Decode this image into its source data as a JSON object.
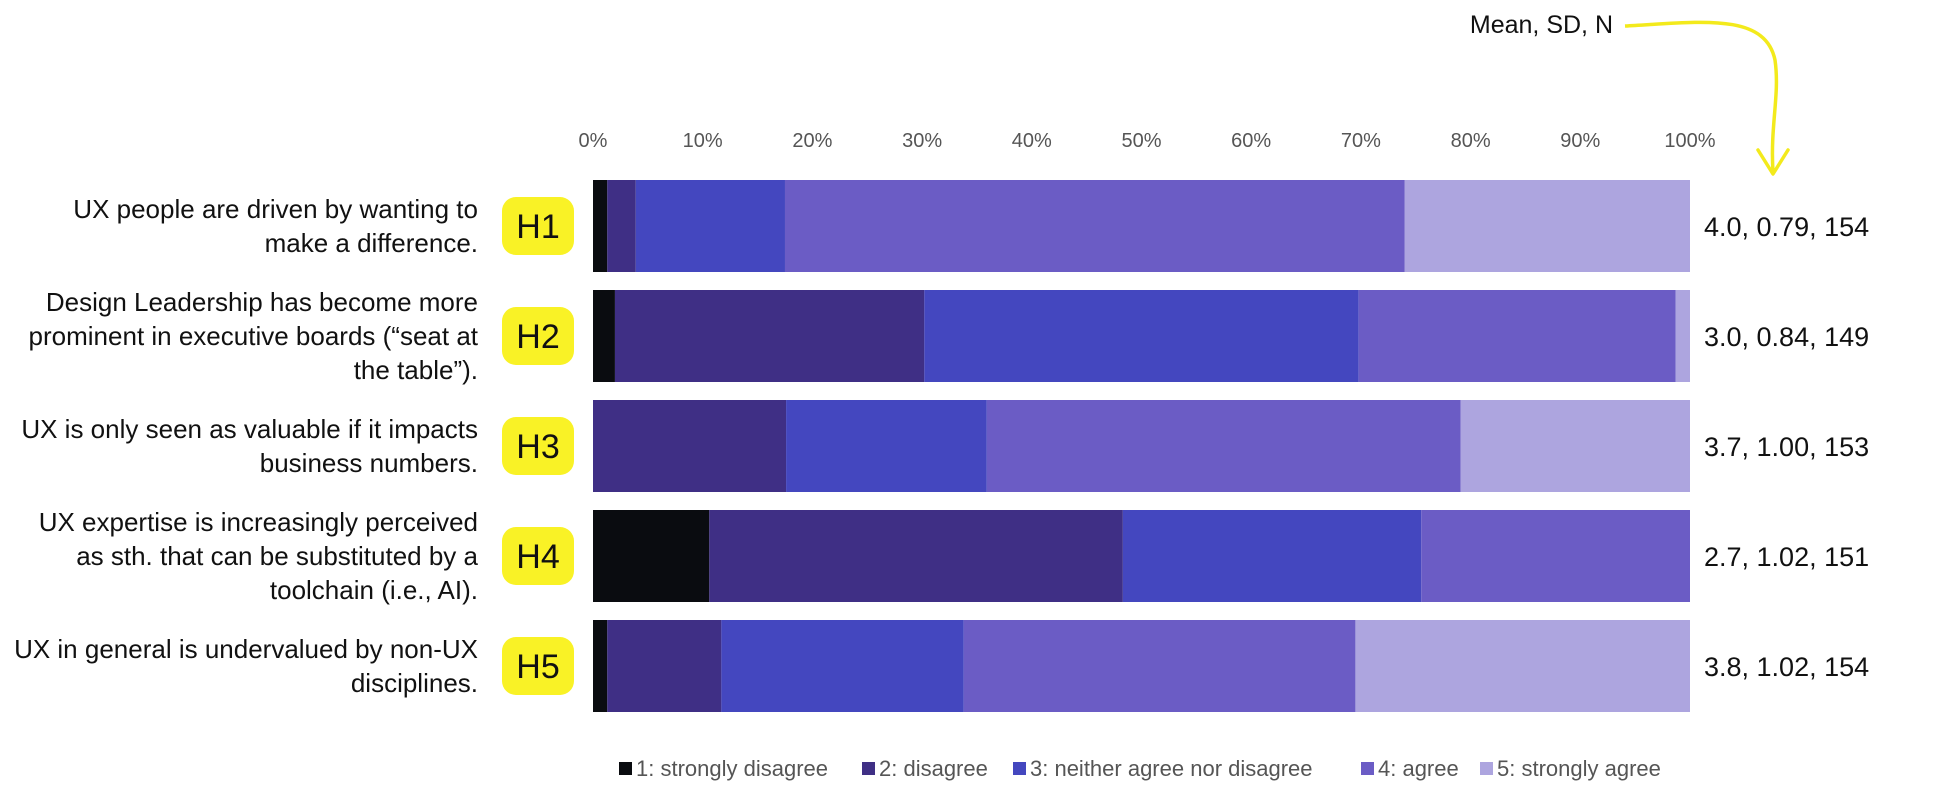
{
  "chart_data": {
    "type": "bar",
    "stacked": true,
    "orientation": "horizontal",
    "xlim": [
      0,
      100
    ],
    "x_ticks": [
      "0%",
      "10%",
      "20%",
      "30%",
      "40%",
      "50%",
      "60%",
      "70%",
      "80%",
      "90%",
      "100%"
    ],
    "legend_position": "bottom",
    "annotation": "Mean, SD, N",
    "categories": [
      {
        "id": "H1",
        "label": "UX people are driven by wanting to make a difference.",
        "stats": "4.0, 0.79, 154",
        "values": [
          1.3,
          2.6,
          13.6,
          56.5,
          26.0
        ]
      },
      {
        "id": "H2",
        "label": "Design Leadership has become more prominent in executive boards (“seat at the table”).",
        "stats": "3.0, 0.84, 149",
        "values": [
          2.0,
          28.2,
          39.6,
          28.9,
          1.3
        ]
      },
      {
        "id": "H3",
        "label": "UX is only seen as valuable if it impacts business numbers.",
        "stats": "3.7, 1.00, 153",
        "values": [
          0.0,
          17.6,
          18.3,
          43.2,
          20.9
        ]
      },
      {
        "id": "H4",
        "label": "UX expertise is increasingly perceived as sth. that can be substituted by a toolchain (i.e., AI).",
        "stats": "2.7, 1.02, 151",
        "values": [
          10.6,
          37.7,
          27.2,
          24.5,
          0.0
        ]
      },
      {
        "id": "H5",
        "label": "UX in general is undervalued by non-UX disciplines.",
        "stats": "3.8, 1.02, 154",
        "values": [
          1.3,
          10.4,
          22.1,
          35.7,
          30.5
        ]
      }
    ],
    "series": [
      {
        "name": "1: strongly disagree",
        "color": "#0a0c10"
      },
      {
        "name": "2: disagree",
        "color": "#3f2f85"
      },
      {
        "name": "3: neither agree nor disagree",
        "color": "#4447bf"
      },
      {
        "name": "4: agree",
        "color": "#6b5cc5"
      },
      {
        "name": "5: strongly agree",
        "color": "#ada5df"
      }
    ],
    "badge_color": "#f9f226",
    "arrow_color": "#f3ea1c"
  }
}
